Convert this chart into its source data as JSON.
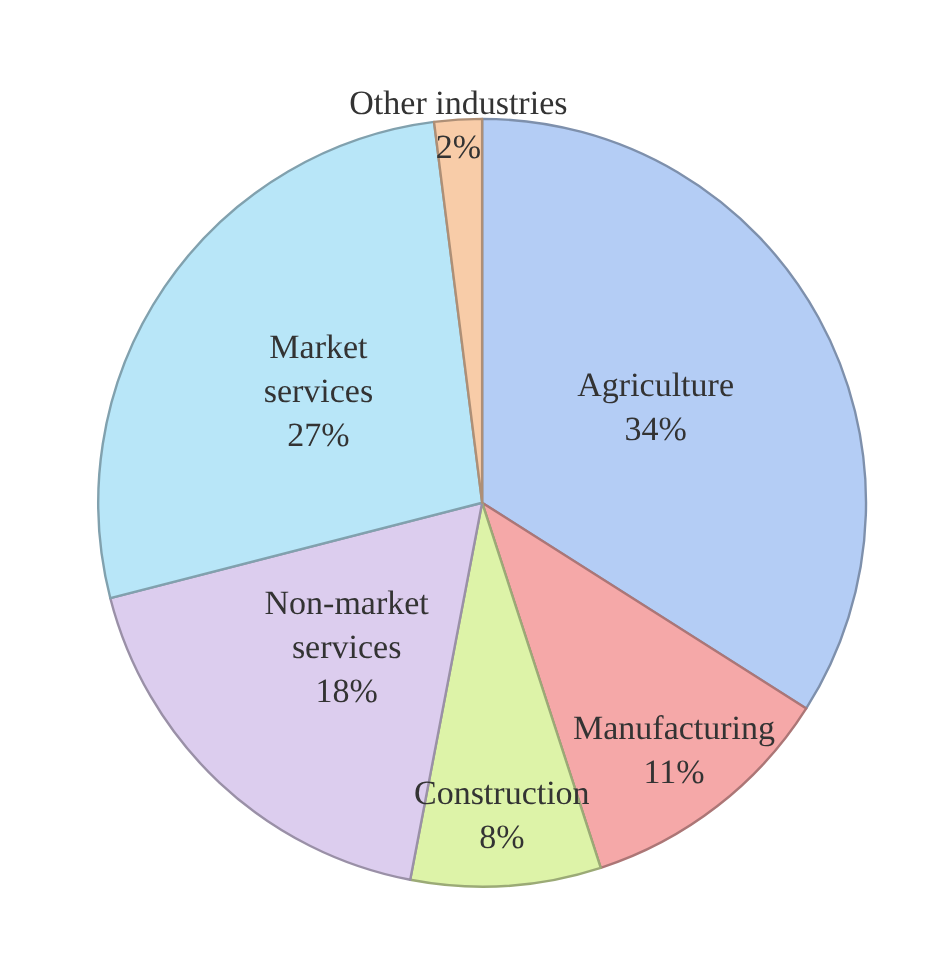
{
  "chart_data": {
    "type": "pie",
    "categories": [
      "Agriculture",
      "Manufacturing",
      "Construction",
      "Non-market services",
      "Market services",
      "Other industries"
    ],
    "values": [
      34,
      11,
      8,
      18,
      27,
      2
    ],
    "colors": [
      "#b4cdf5",
      "#f5a8a8",
      "#ddf3a8",
      "#dccdee",
      "#b8e6f8",
      "#f8cca8"
    ],
    "value_labels": [
      "34%",
      "11%",
      "8%",
      "18%",
      "27%",
      "2%"
    ],
    "legend": false
  }
}
